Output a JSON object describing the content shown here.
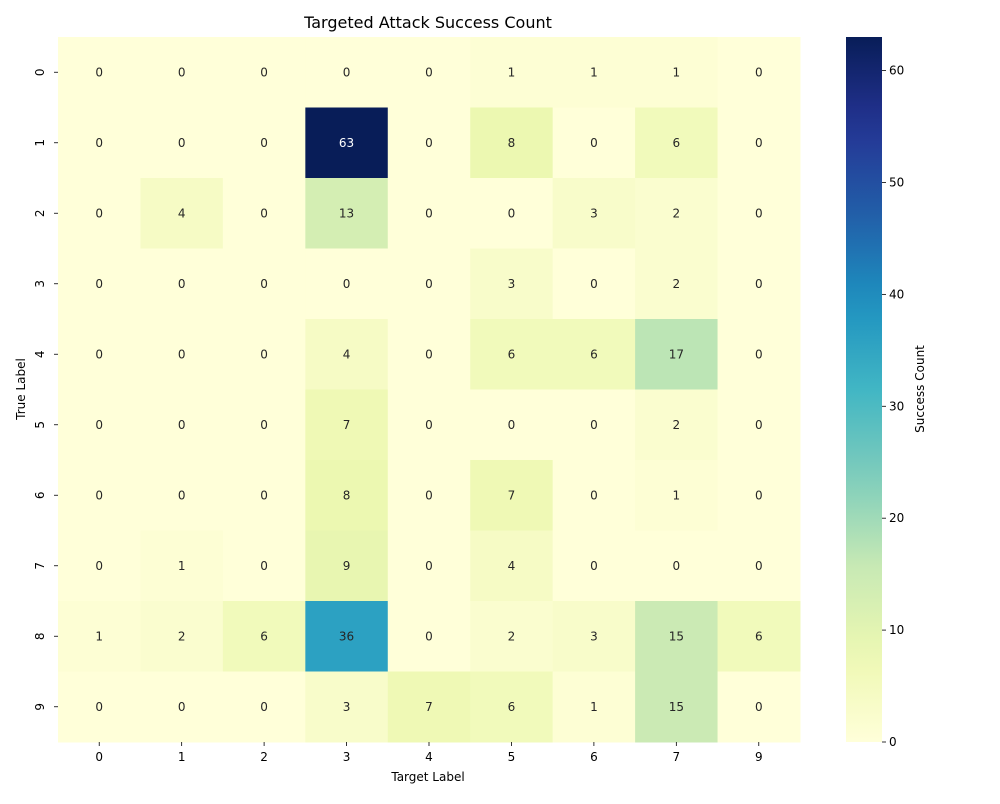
{
  "chart_data": {
    "type": "heatmap",
    "title": "Targeted Attack Success Count",
    "xlabel": "Target Label",
    "ylabel": "True Label",
    "x_categories": [
      "0",
      "1",
      "2",
      "3",
      "4",
      "5",
      "6",
      "7",
      "9"
    ],
    "y_categories": [
      "0",
      "1",
      "2",
      "3",
      "4",
      "5",
      "6",
      "7",
      "8",
      "9"
    ],
    "values": [
      [
        0,
        0,
        0,
        0,
        0,
        1,
        1,
        1,
        0
      ],
      [
        0,
        0,
        0,
        63,
        0,
        8,
        0,
        6,
        0
      ],
      [
        0,
        4,
        0,
        13,
        0,
        0,
        3,
        2,
        0
      ],
      [
        0,
        0,
        0,
        0,
        0,
        3,
        0,
        2,
        0
      ],
      [
        0,
        0,
        0,
        4,
        0,
        6,
        6,
        17,
        0
      ],
      [
        0,
        0,
        0,
        7,
        0,
        0,
        0,
        2,
        0
      ],
      [
        0,
        0,
        0,
        8,
        0,
        7,
        0,
        1,
        0
      ],
      [
        0,
        1,
        0,
        9,
        0,
        4,
        0,
        0,
        0
      ],
      [
        1,
        2,
        6,
        36,
        0,
        2,
        3,
        15,
        6
      ],
      [
        0,
        0,
        0,
        3,
        7,
        6,
        1,
        15,
        0
      ]
    ],
    "colorbar": {
      "label": "Success Count",
      "range": [
        0,
        63
      ],
      "ticks": [
        0,
        10,
        20,
        30,
        40,
        50,
        60
      ],
      "colormap": "YlGnBu"
    },
    "annotations": true,
    "grid": false
  }
}
